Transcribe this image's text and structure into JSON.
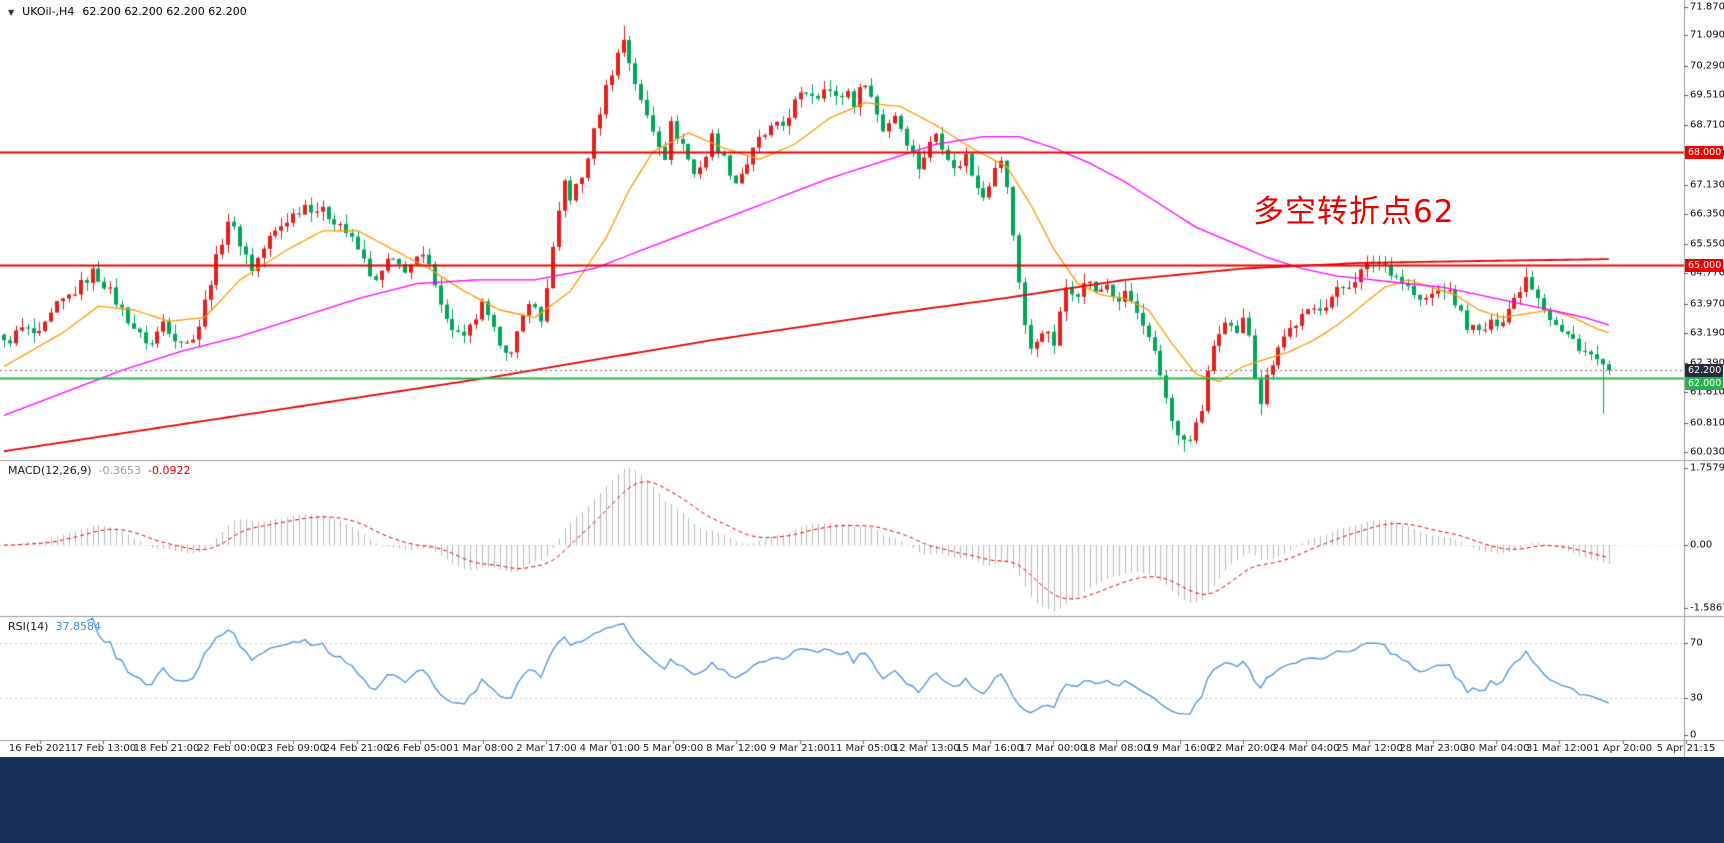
{
  "header": {
    "collapse_icon": "▼",
    "symbol": "UKOil-,H4",
    "ohlc": "62.200 62.200 62.200 62.200"
  },
  "annotation": {
    "text": "多空转折点62",
    "color": "#e60000"
  },
  "chart_data": [
    {
      "type": "candlestick",
      "panel": "main",
      "symbol": "UKOil-",
      "timeframe": "H4",
      "bars": 273,
      "current_price": "62.200",
      "candle_up_color": "#e01f1f",
      "candle_down_color": "#00a45a",
      "y_ticks": [
        "71.870",
        "71.090",
        "70.290",
        "69.510",
        "68.710",
        "67.930",
        "67.130",
        "66.350",
        "65.550",
        "64.770",
        "63.970",
        "63.190",
        "62.390",
        "61.610",
        "60.810",
        "60.030"
      ],
      "close_waypoints": [
        [
          0,
          62.9
        ],
        [
          3,
          63.3
        ],
        [
          6,
          63.1
        ],
        [
          9,
          63.9
        ],
        [
          12,
          64.3
        ],
        [
          15,
          64.8
        ],
        [
          17,
          64.5
        ],
        [
          20,
          63.8
        ],
        [
          23,
          63.1
        ],
        [
          25,
          62.9
        ],
        [
          27,
          63.5
        ],
        [
          29,
          63.1
        ],
        [
          31,
          62.9
        ],
        [
          33,
          63.4
        ],
        [
          35,
          64.6
        ],
        [
          38,
          66.2
        ],
        [
          40,
          65.6
        ],
        [
          42,
          64.9
        ],
        [
          45,
          65.7
        ],
        [
          48,
          66.2
        ],
        [
          51,
          66.6
        ],
        [
          54,
          66.4
        ],
        [
          57,
          66.1
        ],
        [
          60,
          65.4
        ],
        [
          63,
          64.5
        ],
        [
          65,
          65.1
        ],
        [
          68,
          64.9
        ],
        [
          71,
          65.2
        ],
        [
          73,
          64.6
        ],
        [
          75,
          63.5
        ],
        [
          78,
          63.0
        ],
        [
          81,
          63.9
        ],
        [
          83,
          63.2
        ],
        [
          86,
          62.6
        ],
        [
          89,
          64.1
        ],
        [
          91,
          63.5
        ],
        [
          93,
          65.4
        ],
        [
          95,
          67.2
        ],
        [
          96,
          66.8
        ],
        [
          98,
          67.3
        ],
        [
          100,
          68.5
        ],
        [
          102,
          69.7
        ],
        [
          104,
          70.6
        ],
        [
          105,
          71.0
        ],
        [
          106,
          70.4
        ],
        [
          108,
          69.3
        ],
        [
          110,
          68.6
        ],
        [
          112,
          67.9
        ],
        [
          113,
          68.7
        ],
        [
          115,
          68.2
        ],
        [
          117,
          67.4
        ],
        [
          119,
          67.9
        ],
        [
          120,
          68.4
        ],
        [
          122,
          67.8
        ],
        [
          124,
          67.2
        ],
        [
          126,
          67.7
        ],
        [
          128,
          68.3
        ],
        [
          130,
          68.6
        ],
        [
          132,
          68.7
        ],
        [
          134,
          69.3
        ],
        [
          136,
          69.6
        ],
        [
          138,
          69.5
        ],
        [
          139,
          69.8
        ],
        [
          141,
          69.4
        ],
        [
          143,
          69.6
        ],
        [
          144,
          69.3
        ],
        [
          146,
          69.9
        ],
        [
          148,
          69.0
        ],
        [
          149,
          68.6
        ],
        [
          151,
          69.0
        ],
        [
          153,
          68.3
        ],
        [
          155,
          67.6
        ],
        [
          157,
          68.2
        ],
        [
          158,
          68.5
        ],
        [
          160,
          67.9
        ],
        [
          161,
          67.5
        ],
        [
          163,
          67.9
        ],
        [
          164,
          67.4
        ],
        [
          166,
          66.9
        ],
        [
          168,
          67.5
        ],
        [
          169,
          67.8
        ],
        [
          170,
          67.0
        ],
        [
          171,
          65.8
        ],
        [
          172,
          64.6
        ],
        [
          173,
          63.4
        ],
        [
          174,
          62.7
        ],
        [
          176,
          63.3
        ],
        [
          178,
          62.9
        ],
        [
          180,
          64.4
        ],
        [
          182,
          64.3
        ],
        [
          184,
          64.6
        ],
        [
          185,
          64.2
        ],
        [
          187,
          64.5
        ],
        [
          189,
          63.9
        ],
        [
          190,
          64.3
        ],
        [
          192,
          63.7
        ],
        [
          193,
          63.3
        ],
        [
          195,
          62.6
        ],
        [
          197,
          61.5
        ],
        [
          199,
          60.4
        ],
        [
          201,
          60.3
        ],
        [
          203,
          61.2
        ],
        [
          205,
          62.9
        ],
        [
          207,
          63.4
        ],
        [
          209,
          63.1
        ],
        [
          210,
          63.5
        ],
        [
          211,
          63.2
        ],
        [
          212,
          62.1
        ],
        [
          213,
          61.4
        ],
        [
          214,
          62.0
        ],
        [
          216,
          62.9
        ],
        [
          218,
          63.3
        ],
        [
          220,
          63.6
        ],
        [
          222,
          63.8
        ],
        [
          224,
          64.0
        ],
        [
          226,
          64.3
        ],
        [
          228,
          64.5
        ],
        [
          230,
          64.8
        ],
        [
          232,
          65.1
        ],
        [
          234,
          65.0
        ],
        [
          236,
          64.7
        ],
        [
          238,
          64.4
        ],
        [
          240,
          64.0
        ],
        [
          242,
          64.2
        ],
        [
          244,
          64.4
        ],
        [
          246,
          64.0
        ],
        [
          248,
          63.4
        ],
        [
          250,
          63.2
        ],
        [
          252,
          63.4
        ],
        [
          254,
          63.6
        ],
        [
          256,
          64.1
        ],
        [
          258,
          64.7
        ],
        [
          260,
          64.2
        ],
        [
          262,
          63.6
        ],
        [
          264,
          63.2
        ],
        [
          266,
          63.0
        ],
        [
          268,
          62.7
        ],
        [
          270,
          62.45
        ],
        [
          272,
          62.2
        ]
      ],
      "wick_overrides": [
        [
          105,
          "high",
          71.35
        ],
        [
          200,
          "low",
          60.03
        ],
        [
          213,
          "low",
          61.0
        ],
        [
          271,
          "low",
          61.05
        ]
      ],
      "moving_averages": [
        {
          "name": "ma-fast",
          "color": "#ff9900",
          "width": 1.3,
          "waypoints": [
            [
              0,
              62.3
            ],
            [
              10,
              63.2
            ],
            [
              16,
              63.9
            ],
            [
              22,
              63.8
            ],
            [
              28,
              63.5
            ],
            [
              34,
              63.6
            ],
            [
              40,
              64.6
            ],
            [
              48,
              65.4
            ],
            [
              54,
              65.9
            ],
            [
              60,
              65.9
            ],
            [
              66,
              65.4
            ],
            [
              72,
              64.9
            ],
            [
              78,
              64.3
            ],
            [
              84,
              63.8
            ],
            [
              90,
              63.6
            ],
            [
              96,
              64.3
            ],
            [
              102,
              65.7
            ],
            [
              106,
              67.0
            ],
            [
              110,
              68.0
            ],
            [
              116,
              68.5
            ],
            [
              122,
              68.1
            ],
            [
              128,
              67.8
            ],
            [
              134,
              68.2
            ],
            [
              140,
              68.9
            ],
            [
              146,
              69.3
            ],
            [
              152,
              69.2
            ],
            [
              158,
              68.7
            ],
            [
              164,
              68.1
            ],
            [
              170,
              67.6
            ],
            [
              174,
              66.6
            ],
            [
              178,
              65.4
            ],
            [
              182,
              64.5
            ],
            [
              186,
              64.2
            ],
            [
              190,
              64.1
            ],
            [
              194,
              63.8
            ],
            [
              198,
              62.9
            ],
            [
              202,
              62.1
            ],
            [
              206,
              61.9
            ],
            [
              210,
              62.3
            ],
            [
              214,
              62.5
            ],
            [
              218,
              62.7
            ],
            [
              222,
              63.0
            ],
            [
              226,
              63.4
            ],
            [
              230,
              63.9
            ],
            [
              234,
              64.4
            ],
            [
              238,
              64.6
            ],
            [
              242,
              64.4
            ],
            [
              246,
              64.2
            ],
            [
              250,
              63.8
            ],
            [
              254,
              63.6
            ],
            [
              258,
              63.7
            ],
            [
              262,
              63.8
            ],
            [
              266,
              63.6
            ],
            [
              270,
              63.3
            ],
            [
              272,
              63.2
            ]
          ]
        },
        {
          "name": "ma-mid",
          "color": "#ff00ff",
          "width": 1.3,
          "waypoints": [
            [
              0,
              61.0
            ],
            [
              10,
              61.6
            ],
            [
              20,
              62.2
            ],
            [
              30,
              62.7
            ],
            [
              40,
              63.1
            ],
            [
              50,
              63.6
            ],
            [
              60,
              64.1
            ],
            [
              70,
              64.5
            ],
            [
              80,
              64.6
            ],
            [
              90,
              64.6
            ],
            [
              100,
              64.9
            ],
            [
              110,
              65.5
            ],
            [
              120,
              66.1
            ],
            [
              130,
              66.7
            ],
            [
              140,
              67.3
            ],
            [
              150,
              67.8
            ],
            [
              158,
              68.2
            ],
            [
              166,
              68.4
            ],
            [
              172,
              68.4
            ],
            [
              178,
              68.1
            ],
            [
              184,
              67.7
            ],
            [
              190,
              67.2
            ],
            [
              196,
              66.6
            ],
            [
              202,
              66.0
            ],
            [
              208,
              65.6
            ],
            [
              214,
              65.2
            ],
            [
              220,
              64.9
            ],
            [
              226,
              64.7
            ],
            [
              232,
              64.6
            ],
            [
              238,
              64.5
            ],
            [
              244,
              64.4
            ],
            [
              250,
              64.2
            ],
            [
              256,
              64.0
            ],
            [
              262,
              63.8
            ],
            [
              268,
              63.6
            ],
            [
              272,
              63.4
            ]
          ]
        },
        {
          "name": "ma-slow",
          "color": "#e00000",
          "width": 1.8,
          "waypoints": [
            [
              0,
              60.05
            ],
            [
              40,
              61.0
            ],
            [
              82,
              62.0
            ],
            [
              120,
              63.0
            ],
            [
              150,
              63.7
            ],
            [
              169,
              64.1
            ],
            [
              190,
              64.6
            ],
            [
              210,
              64.9
            ],
            [
              230,
              65.05
            ],
            [
              250,
              65.1
            ],
            [
              272,
              65.15
            ]
          ]
        }
      ],
      "hlines": [
        {
          "price": 68.0,
          "label": "68.000",
          "color": "#ee0000",
          "style": "solid",
          "width": 2
        },
        {
          "price": 65.0,
          "label": "65.000",
          "color": "#ee0000",
          "style": "solid",
          "width": 2
        },
        {
          "price": 62.2,
          "label": "62.200",
          "color": "#777777",
          "style": "dotted",
          "width": 1,
          "tag_color": "#242b38"
        },
        {
          "price": 62.0,
          "label": "62.000",
          "color": "#27b24e",
          "style": "solid",
          "width": 2
        }
      ]
    },
    {
      "type": "macd",
      "panel": "indicator-1",
      "label": "MACD(12,26,9)",
      "values": [
        "-0.3653",
        "-0.0922"
      ],
      "value_colors": [
        "#9a9a9a",
        "#e00000"
      ],
      "params": {
        "fast": 12,
        "slow": 26,
        "signal": 9
      },
      "y_ticks": [
        "1.7579",
        "0.00",
        "-1.5867"
      ],
      "histogram_color": "#b8b8b8",
      "signal_color": "#e00000"
    },
    {
      "type": "rsi",
      "panel": "indicator-2",
      "label": "RSI(14)",
      "value": "37.8584",
      "value_color": "#4a90d9",
      "period": 14,
      "levels": [
        70,
        30
      ],
      "y_ticks": [
        "70",
        "30",
        "0"
      ],
      "line_color": "#4a90d9"
    }
  ],
  "time_axis": {
    "labels": [
      "16 Feb 2021",
      "17 Feb 13:00",
      "18 Feb 21:00",
      "22 Feb 00:00",
      "23 Feb 09:00",
      "24 Feb 21:00",
      "26 Feb 05:00",
      "1 Mar 08:00",
      "2 Mar 17:00",
      "4 Mar 01:00",
      "5 Mar 09:00",
      "8 Mar 12:00",
      "9 Mar 21:00",
      "11 Mar 05:00",
      "12 Mar 13:00",
      "15 Mar 16:00",
      "17 Mar 00:00",
      "18 Mar 08:00",
      "19 Mar 16:00",
      "22 Mar 20:00",
      "24 Mar 04:00",
      "25 Mar 12:00",
      "28 Mar 23:00",
      "30 Mar 04:00",
      "31 Mar 12:00",
      "1 Apr 20:00",
      "5 Apr 21:15"
    ]
  },
  "footer": {
    "color": "#16325c"
  }
}
